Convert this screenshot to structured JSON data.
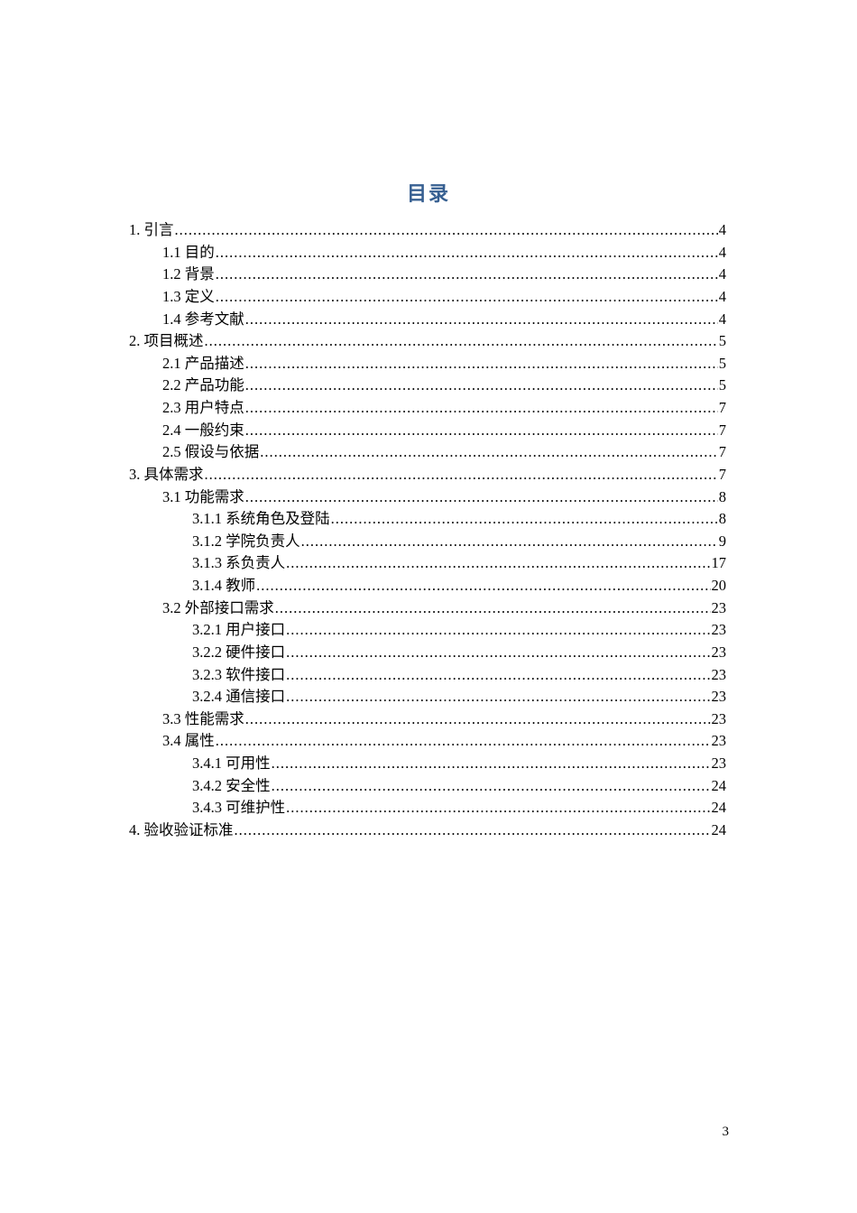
{
  "document": {
    "toc_title": "目录",
    "accent_color": "#365f91",
    "footer_page_number": "3"
  },
  "toc": {
    "entries": [
      {
        "level": 1,
        "label": "1. 引言",
        "page": "4"
      },
      {
        "level": 2,
        "label": "1.1 目的",
        "page": "4"
      },
      {
        "level": 2,
        "label": "1.2 背景",
        "page": "4"
      },
      {
        "level": 2,
        "label": "1.3 定义",
        "page": "4"
      },
      {
        "level": 2,
        "label": "1.4 参考文献",
        "page": "4"
      },
      {
        "level": 1,
        "label": "2. 项目概述",
        "page": "5"
      },
      {
        "level": 2,
        "label": "2.1 产品描述",
        "page": "5"
      },
      {
        "level": 2,
        "label": "2.2 产品功能",
        "page": "5"
      },
      {
        "level": 2,
        "label": "2.3 用户特点",
        "page": "7"
      },
      {
        "level": 2,
        "label": "2.4 一般约束",
        "page": "7"
      },
      {
        "level": 2,
        "label": "2.5 假设与依据",
        "page": "7"
      },
      {
        "level": 1,
        "label": "3. 具体需求",
        "page": "7"
      },
      {
        "level": 2,
        "label": "3.1 功能需求",
        "page": "8"
      },
      {
        "level": 3,
        "label": "3.1.1 系统角色及登陆",
        "page": "8"
      },
      {
        "level": 3,
        "label": "3.1.2 学院负责人",
        "page": "9"
      },
      {
        "level": 3,
        "label": "3.1.3 系负责人",
        "page": "17"
      },
      {
        "level": 3,
        "label": "3.1.4 教师",
        "page": "20"
      },
      {
        "level": 2,
        "label": "3.2 外部接口需求",
        "page": "23"
      },
      {
        "level": 3,
        "label": "3.2.1 用户接口",
        "page": "23"
      },
      {
        "level": 3,
        "label": "3.2.2 硬件接口",
        "page": "23"
      },
      {
        "level": 3,
        "label": "3.2.3 软件接口",
        "page": "23"
      },
      {
        "level": 3,
        "label": "3.2.4 通信接口",
        "page": "23"
      },
      {
        "level": 2,
        "label": "3.3 性能需求",
        "page": "23"
      },
      {
        "level": 2,
        "label": "3.4 属性",
        "page": "23"
      },
      {
        "level": 3,
        "label": "3.4.1 可用性",
        "page": "23"
      },
      {
        "level": 3,
        "label": "3.4.2 安全性",
        "page": "24"
      },
      {
        "level": 3,
        "label": "3.4.3 可维护性",
        "page": "24"
      },
      {
        "level": 1,
        "label": "4. 验收验证标准",
        "page": "24"
      }
    ]
  }
}
